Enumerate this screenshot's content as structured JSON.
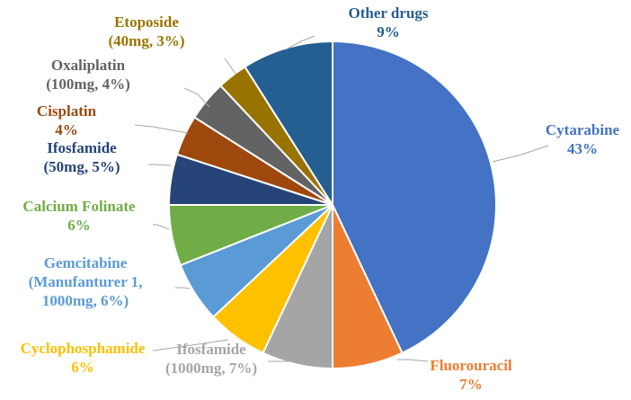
{
  "chart_data": {
    "type": "pie",
    "slices": [
      {
        "lines": [
          "Cytarabine",
          "43%"
        ],
        "value": 43,
        "color": "#4472C4"
      },
      {
        "lines": [
          "Fluorouracil",
          "7%"
        ],
        "value": 7,
        "color": "#ED7D31"
      },
      {
        "lines": [
          "Ifosfamide",
          "(1000mg, 7%)"
        ],
        "value": 7,
        "color": "#A5A5A5"
      },
      {
        "lines": [
          "Cyclophosphamide",
          "6%"
        ],
        "value": 6,
        "color": "#FFC000"
      },
      {
        "lines": [
          "Gemcitabine",
          "(Manufanturer 1,",
          "1000mg, 6%)"
        ],
        "value": 6,
        "color": "#5B9BD5"
      },
      {
        "lines": [
          "Calcium Folinate",
          "6%"
        ],
        "value": 6,
        "color": "#70AD47"
      },
      {
        "lines": [
          "Ifosfamide",
          "(50mg, 5%)"
        ],
        "value": 5,
        "color": "#264478"
      },
      {
        "lines": [
          "Cisplatin",
          "4%"
        ],
        "value": 4,
        "color": "#9E480E"
      },
      {
        "lines": [
          "Oxaliplatin",
          "(100mg, 4%)"
        ],
        "value": 4,
        "color": "#636363"
      },
      {
        "lines": [
          "Etoposide",
          "(40mg, 3%)"
        ],
        "value": 3,
        "color": "#997300"
      },
      {
        "lines": [
          "Other drugs",
          "9%"
        ],
        "value": 9,
        "color": "#255E91"
      }
    ],
    "label_colors": [
      "#4472C4",
      "#ED7D31",
      "#A5A5A5",
      "#FFC000",
      "#5B9BD5",
      "#70AD47",
      "#264478",
      "#9E480E",
      "#636363",
      "#997300",
      "#255E91"
    ],
    "start": "12 o'clock",
    "direction": "clockwise",
    "legend": "none"
  }
}
